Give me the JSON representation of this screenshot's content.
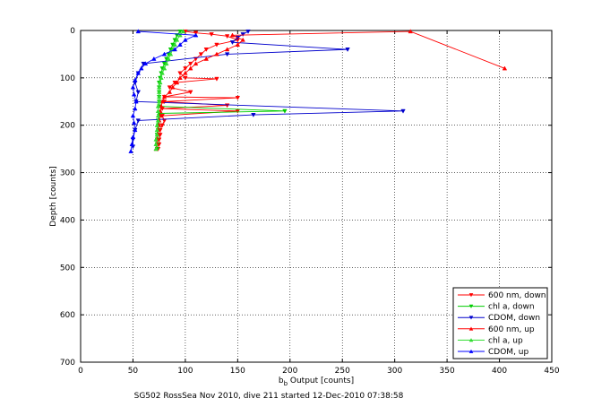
{
  "chart_data": {
    "type": "line",
    "title": "",
    "footer": "SG502 RossSea Nov 2010, dive 211 started 12-Dec-2010 07:38:58",
    "xlabel_main": "b",
    "xlabel_sub": "b",
    "xlabel_rest": " Output [counts]",
    "ylabel": "Depth [counts]",
    "xlim": [
      0,
      450
    ],
    "ylim": [
      0,
      700
    ],
    "y_reversed": true,
    "grid": true,
    "x_ticks": [
      "0",
      "50",
      "100",
      "150",
      "200",
      "250",
      "300",
      "350",
      "400",
      "450"
    ],
    "y_ticks": [
      "0",
      "100",
      "200",
      "300",
      "400",
      "500",
      "600",
      "700"
    ],
    "legend_position": "bottom-right",
    "series": [
      {
        "name": "600 nm, down",
        "color": "#ff0000",
        "marker": "triangle-down",
        "points": [
          [
            100,
            2
          ],
          [
            110,
            5
          ],
          [
            125,
            8
          ],
          [
            140,
            12
          ],
          [
            150,
            20
          ],
          [
            130,
            30
          ],
          [
            120,
            40
          ],
          [
            115,
            50
          ],
          [
            110,
            60
          ],
          [
            105,
            70
          ],
          [
            100,
            80
          ],
          [
            95,
            90
          ],
          [
            100,
            100
          ],
          [
            130,
            102
          ],
          [
            90,
            110
          ],
          [
            85,
            120
          ],
          [
            105,
            130
          ],
          [
            80,
            140
          ],
          [
            150,
            142
          ],
          [
            80,
            150
          ],
          [
            140,
            158
          ],
          [
            78,
            165
          ],
          [
            150,
            170
          ],
          [
            78,
            180
          ],
          [
            80,
            190
          ],
          [
            78,
            200
          ],
          [
            76,
            210
          ],
          [
            76,
            220
          ],
          [
            75,
            230
          ],
          [
            75,
            240
          ],
          [
            74,
            250
          ]
        ]
      },
      {
        "name": "chl a, down",
        "color": "#00cc00",
        "marker": "triangle-down",
        "points": [
          [
            95,
            2
          ],
          [
            92,
            10
          ],
          [
            90,
            20
          ],
          [
            88,
            30
          ],
          [
            86,
            40
          ],
          [
            84,
            50
          ],
          [
            82,
            60
          ],
          [
            80,
            70
          ],
          [
            78,
            80
          ],
          [
            77,
            90
          ],
          [
            76,
            100
          ],
          [
            75,
            110
          ],
          [
            75,
            120
          ],
          [
            75,
            130
          ],
          [
            75,
            140
          ],
          [
            75,
            150
          ],
          [
            75,
            160
          ],
          [
            195,
            170
          ],
          [
            75,
            175
          ],
          [
            75,
            180
          ],
          [
            74,
            190
          ],
          [
            74,
            200
          ],
          [
            74,
            210
          ],
          [
            73,
            220
          ],
          [
            73,
            230
          ],
          [
            73,
            240
          ],
          [
            73,
            250
          ]
        ]
      },
      {
        "name": "CDOM, down",
        "color": "#0000cc",
        "marker": "triangle-down",
        "points": [
          [
            160,
            2
          ],
          [
            155,
            8
          ],
          [
            150,
            15
          ],
          [
            145,
            25
          ],
          [
            255,
            40
          ],
          [
            140,
            50
          ],
          [
            60,
            70
          ],
          [
            55,
            90
          ],
          [
            52,
            110
          ],
          [
            55,
            130
          ],
          [
            53,
            150
          ],
          [
            308,
            170
          ],
          [
            165,
            178
          ],
          [
            55,
            190
          ],
          [
            52,
            210
          ],
          [
            50,
            230
          ],
          [
            50,
            245
          ]
        ]
      },
      {
        "name": "600 nm, up",
        "color": "#ff0000",
        "marker": "triangle-up",
        "points": [
          [
            72,
            250
          ],
          [
            73,
            240
          ],
          [
            73,
            230
          ],
          [
            74,
            220
          ],
          [
            74,
            210
          ],
          [
            75,
            200
          ],
          [
            75,
            190
          ],
          [
            76,
            180
          ],
          [
            76,
            170
          ],
          [
            77,
            160
          ],
          [
            78,
            150
          ],
          [
            80,
            140
          ],
          [
            85,
            130
          ],
          [
            88,
            120
          ],
          [
            92,
            110
          ],
          [
            95,
            100
          ],
          [
            100,
            90
          ],
          [
            105,
            80
          ],
          [
            110,
            70
          ],
          [
            120,
            60
          ],
          [
            130,
            50
          ],
          [
            140,
            40
          ],
          [
            150,
            30
          ],
          [
            155,
            20
          ],
          [
            145,
            10
          ],
          [
            315,
            2
          ],
          [
            405,
            80
          ]
        ]
      },
      {
        "name": "chl a, up",
        "color": "#33dd33",
        "marker": "triangle-up",
        "points": [
          [
            72,
            250
          ],
          [
            72,
            240
          ],
          [
            72,
            230
          ],
          [
            73,
            220
          ],
          [
            73,
            210
          ],
          [
            73,
            200
          ],
          [
            74,
            190
          ],
          [
            74,
            180
          ],
          [
            74,
            170
          ],
          [
            74,
            160
          ],
          [
            75,
            150
          ],
          [
            75,
            140
          ],
          [
            75,
            130
          ],
          [
            75,
            120
          ],
          [
            76,
            110
          ],
          [
            77,
            100
          ],
          [
            78,
            90
          ],
          [
            80,
            80
          ],
          [
            82,
            70
          ],
          [
            84,
            60
          ],
          [
            86,
            50
          ],
          [
            88,
            40
          ],
          [
            90,
            30
          ],
          [
            92,
            20
          ],
          [
            95,
            10
          ],
          [
            98,
            2
          ]
        ]
      },
      {
        "name": "CDOM, up",
        "color": "#0000ff",
        "marker": "triangle-up",
        "points": [
          [
            48,
            255
          ],
          [
            49,
            240
          ],
          [
            50,
            225
          ],
          [
            52,
            210
          ],
          [
            51,
            195
          ],
          [
            50,
            180
          ],
          [
            52,
            165
          ],
          [
            53,
            150
          ],
          [
            51,
            135
          ],
          [
            50,
            120
          ],
          [
            52,
            105
          ],
          [
            55,
            90
          ],
          [
            58,
            80
          ],
          [
            62,
            70
          ],
          [
            70,
            60
          ],
          [
            80,
            50
          ],
          [
            90,
            40
          ],
          [
            95,
            30
          ],
          [
            100,
            20
          ],
          [
            110,
            10
          ],
          [
            55,
            2
          ]
        ]
      }
    ]
  }
}
